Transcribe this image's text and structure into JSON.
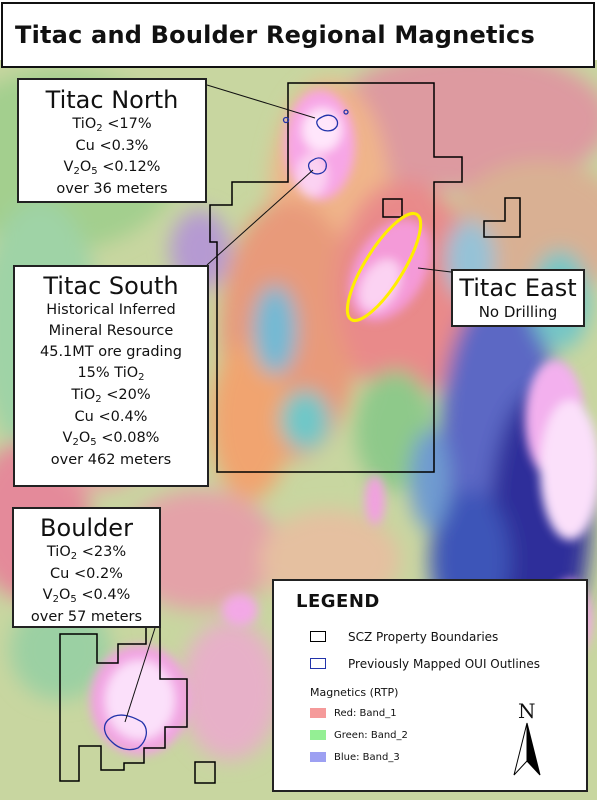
{
  "title": "Titac and Boulder Regional Magnetics",
  "callouts": {
    "titac_north": {
      "name": "Titac North",
      "tio2": "<17%",
      "cu": "Cu <0.3%",
      "v2o5": "<0.12%",
      "interval": "over 36 meters"
    },
    "titac_south": {
      "name": "Titac South",
      "line1": "Historical Inferred",
      "line2": "Mineral Resource",
      "line3": "45.1MT ore grading",
      "grade_prefix": "15% TiO",
      "tio2": "<20%",
      "cu": "Cu <0.4%",
      "v2o5": "<0.08%",
      "interval": "over 462 meters"
    },
    "boulder": {
      "name": "Boulder",
      "tio2": "<23%",
      "cu": "Cu <0.2%",
      "v2o5": "<0.4%",
      "interval": "over 57 meters"
    },
    "titac_east": {
      "name": "Titac East",
      "note": "No Drilling"
    }
  },
  "formula": {
    "tio2_prefix": "TiO",
    "tio2_sub": "2",
    "v2o5_v": "V",
    "v2o5_sub1": "2",
    "v2o5_o": "O",
    "v2o5_sub2": "5"
  },
  "legend": {
    "title": "LEGEND",
    "property": "SCZ Property Boundaries",
    "oui": "Previously Mapped OUI Outlines",
    "magnetics_title": "Magnetics (RTP)",
    "bands": [
      {
        "label": "Red: Band_1",
        "color": "#f59a9a"
      },
      {
        "label": "Green: Band_2",
        "color": "#94ef94"
      },
      {
        "label": "Blue: Band_3",
        "color": "#9da0f2"
      }
    ],
    "north": "N"
  },
  "colors": {
    "property_line": "#000000",
    "oui_line": "#2233aa",
    "titac_east_ellipse": "#ffee00"
  }
}
